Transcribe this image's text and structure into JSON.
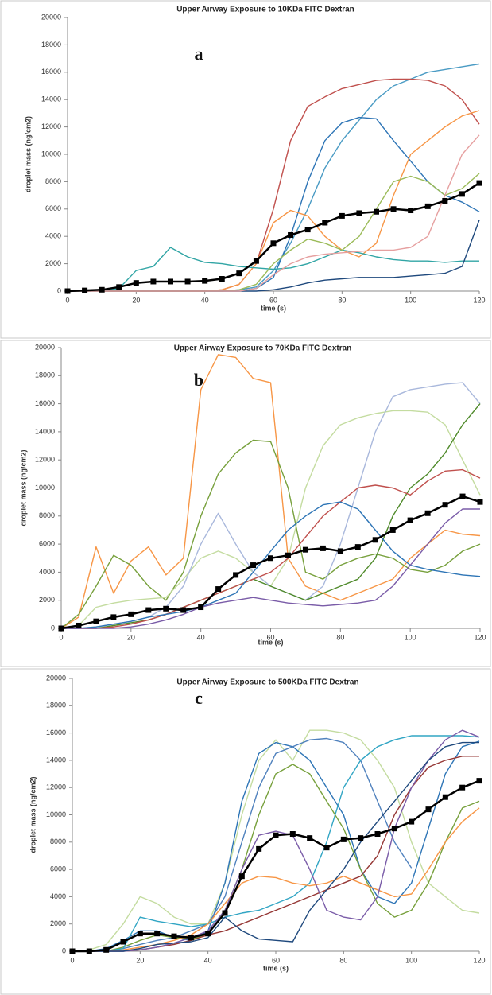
{
  "chart_data": [
    {
      "type": "line",
      "title": "Upper Airway Exposure to 10KDa FITC Dextran",
      "panel_label": "a",
      "xlabel": "time (s)",
      "ylabel": "droplet mass (ng/cm2)",
      "xlim": [
        0,
        120
      ],
      "ylim": [
        0,
        20000
      ],
      "xticks": [
        0,
        20,
        40,
        60,
        80,
        100,
        120
      ],
      "yticks": [
        0,
        2000,
        4000,
        6000,
        8000,
        10000,
        12000,
        14000,
        16000,
        18000,
        20000
      ],
      "x": [
        0,
        5,
        10,
        15,
        20,
        25,
        30,
        35,
        40,
        45,
        50,
        55,
        60,
        65,
        70,
        75,
        80,
        85,
        90,
        95,
        100,
        105,
        110,
        115,
        120
      ],
      "series": [
        {
          "color": "#4a9bc4",
          "values": [
            0,
            0,
            0,
            0,
            0,
            0,
            0,
            0,
            0,
            0,
            100,
            300,
            1500,
            3500,
            6000,
            9000,
            11000,
            12500,
            14000,
            15000,
            15500,
            16000,
            16200,
            16400,
            16600
          ]
        },
        {
          "color": "#c0504d",
          "values": [
            0,
            0,
            0,
            0,
            0,
            0,
            0,
            0,
            0,
            100,
            500,
            2000,
            6000,
            11000,
            13500,
            14200,
            14800,
            15100,
            15400,
            15500,
            15500,
            15400,
            15000,
            14000,
            12200
          ]
        },
        {
          "color": "#2e75b6",
          "values": [
            0,
            0,
            0,
            0,
            0,
            0,
            0,
            0,
            0,
            0,
            0,
            200,
            1000,
            4000,
            8000,
            11000,
            12300,
            12700,
            12600,
            11000,
            9500,
            8000,
            7000,
            6500,
            5800
          ]
        },
        {
          "color": "#f79646",
          "values": [
            0,
            0,
            0,
            0,
            0,
            0,
            0,
            0,
            0,
            100,
            500,
            2000,
            5000,
            5900,
            5500,
            4000,
            3000,
            2500,
            3500,
            7000,
            10000,
            11000,
            12000,
            12800,
            13200
          ]
        },
        {
          "color": "#31a5a5",
          "values": [
            0,
            0,
            0,
            200,
            1500,
            1800,
            3200,
            2500,
            2100,
            2000,
            1800,
            1700,
            1600,
            1700,
            2000,
            2500,
            3000,
            2800,
            2500,
            2300,
            2200,
            2200,
            2100,
            2200,
            2200
          ]
        },
        {
          "color": "#9bbb59",
          "values": [
            0,
            0,
            0,
            0,
            0,
            0,
            0,
            0,
            0,
            0,
            100,
            500,
            2000,
            3000,
            3800,
            3500,
            3000,
            4000,
            6000,
            8000,
            8400,
            8000,
            7000,
            7500,
            8600
          ]
        },
        {
          "color": "#1f497d",
          "values": [
            0,
            0,
            0,
            0,
            0,
            0,
            0,
            0,
            0,
            0,
            0,
            0,
            100,
            300,
            600,
            800,
            900,
            1000,
            1000,
            1000,
            1100,
            1200,
            1300,
            1800,
            5200
          ]
        },
        {
          "color": "#e6a0a0",
          "values": [
            0,
            0,
            0,
            0,
            0,
            0,
            0,
            0,
            0,
            0,
            0,
            200,
            1200,
            2000,
            2500,
            2700,
            2800,
            2900,
            3000,
            3000,
            3200,
            4000,
            7000,
            10000,
            11400
          ]
        },
        {
          "color": "#000000",
          "marker": "square",
          "values": [
            0,
            50,
            100,
            300,
            600,
            700,
            700,
            700,
            750,
            900,
            1300,
            2200,
            3500,
            4100,
            4500,
            5000,
            5500,
            5700,
            5800,
            6000,
            5900,
            6200,
            6600,
            7100,
            7900
          ]
        }
      ]
    },
    {
      "type": "line",
      "title": "Upper Airway  Exposure to 70KDa FITC Dextran",
      "panel_label": "b",
      "xlabel": "time (s)",
      "ylabel": "droplet mass (ng/cm2)",
      "xlim": [
        0,
        120
      ],
      "ylim": [
        0,
        20000
      ],
      "xticks": [
        0,
        20,
        40,
        60,
        80,
        100,
        120
      ],
      "yticks": [
        0,
        2000,
        4000,
        6000,
        8000,
        10000,
        12000,
        14000,
        16000,
        18000,
        20000
      ],
      "x": [
        0,
        5,
        10,
        15,
        20,
        25,
        30,
        35,
        40,
        45,
        50,
        55,
        60,
        65,
        70,
        75,
        80,
        85,
        90,
        95,
        100,
        105,
        110,
        115,
        120
      ],
      "series": [
        {
          "color": "#f79646",
          "values": [
            0,
            800,
            5800,
            2500,
            4800,
            5800,
            3800,
            5000,
            17000,
            19500,
            19300,
            17800,
            17500,
            5000,
            3000,
            2500,
            2000,
            2500,
            3000,
            3500,
            5000,
            6000,
            7000,
            6700,
            6600
          ]
        },
        {
          "color": "#77a03c",
          "values": [
            0,
            1000,
            3000,
            5200,
            4500,
            3000,
            2000,
            4000,
            8000,
            11000,
            12500,
            13400,
            13300,
            10000,
            4000,
            3500,
            4500,
            5000,
            5300,
            5000,
            4200,
            4000,
            4500,
            5500,
            6000
          ]
        },
        {
          "color": "#c4dca0",
          "values": [
            0,
            200,
            1500,
            1800,
            2000,
            2100,
            2200,
            3500,
            5000,
            5500,
            5000,
            4000,
            3000,
            5000,
            10000,
            13000,
            14500,
            15000,
            15300,
            15500,
            15500,
            15400,
            14500,
            12000,
            9500
          ]
        },
        {
          "color": "#a9b8dc",
          "values": [
            0,
            0,
            100,
            300,
            500,
            800,
            1500,
            3000,
            6000,
            8200,
            6000,
            4000,
            3000,
            2500,
            2000,
            3000,
            6000,
            10000,
            14000,
            16500,
            17000,
            17200,
            17400,
            17500,
            16000
          ]
        },
        {
          "color": "#4f8a2a",
          "values": [
            0,
            0,
            0,
            200,
            400,
            600,
            1000,
            1500,
            2000,
            2500,
            3000,
            3500,
            3000,
            2500,
            2000,
            2500,
            3000,
            3500,
            5000,
            8000,
            10000,
            11000,
            12500,
            14500,
            16000
          ]
        },
        {
          "color": "#c0504d",
          "values": [
            0,
            0,
            0,
            100,
            300,
            600,
            1000,
            1500,
            2000,
            2500,
            3000,
            3500,
            4000,
            5000,
            6500,
            8000,
            9000,
            10000,
            10200,
            10000,
            9500,
            10500,
            11200,
            11300,
            10700
          ]
        },
        {
          "color": "#2e75b6",
          "values": [
            0,
            0,
            100,
            300,
            500,
            800,
            1000,
            1200,
            1500,
            2000,
            2500,
            4000,
            5500,
            7000,
            8000,
            8800,
            9000,
            8500,
            7000,
            5500,
            4500,
            4200,
            4000,
            3800,
            3700
          ]
        },
        {
          "color": "#7a5ca8",
          "values": [
            0,
            0,
            0,
            0,
            100,
            300,
            600,
            1000,
            1500,
            1800,
            2000,
            2200,
            2000,
            1800,
            1700,
            1600,
            1700,
            1800,
            2000,
            3000,
            4500,
            6000,
            7500,
            8500,
            8500
          ]
        },
        {
          "color": "#000000",
          "marker": "square",
          "values": [
            0,
            200,
            500,
            800,
            1000,
            1300,
            1400,
            1300,
            1500,
            2800,
            3800,
            4500,
            5000,
            5200,
            5600,
            5700,
            5500,
            5800,
            6300,
            7000,
            7700,
            8200,
            8800,
            9400,
            9000
          ]
        }
      ]
    },
    {
      "type": "line",
      "title": "Upper Airway Exposure to 500KDa FITC Dextran",
      "panel_label": "c",
      "xlabel": "time (s)",
      "ylabel": "droplet mass (ng/cm2)",
      "xlim": [
        0,
        120
      ],
      "ylim": [
        0,
        20000
      ],
      "xticks": [
        0,
        20,
        40,
        60,
        80,
        100,
        120
      ],
      "yticks": [
        0,
        2000,
        4000,
        6000,
        8000,
        10000,
        12000,
        14000,
        16000,
        18000,
        20000
      ],
      "x": [
        0,
        5,
        10,
        15,
        20,
        25,
        30,
        35,
        40,
        45,
        50,
        55,
        60,
        65,
        70,
        75,
        80,
        85,
        90,
        95,
        100,
        105,
        110,
        115,
        120
      ],
      "series": [
        {
          "color": "#c4dca0",
          "values": [
            0,
            100,
            500,
            2000,
            4000,
            3500,
            2500,
            2000,
            2000,
            5000,
            10000,
            14000,
            15500,
            14000,
            16200,
            16200,
            16000,
            15500,
            14000,
            12000,
            8000,
            5000,
            4000,
            3000,
            2800
          ]
        },
        {
          "color": "#2e75b6",
          "values": [
            0,
            0,
            200,
            800,
            1500,
            1500,
            1000,
            800,
            1500,
            5000,
            11000,
            14500,
            15300,
            15000,
            14000,
            12000,
            10000,
            6000,
            4000,
            3500,
            5000,
            9000,
            13000,
            15000,
            15400
          ]
        },
        {
          "color": "#4f81bd",
          "values": [
            0,
            0,
            0,
            200,
            500,
            800,
            1000,
            1500,
            2000,
            4000,
            8000,
            12000,
            14500,
            15000,
            15500,
            15600,
            15300,
            14000,
            11000,
            8000,
            6100,
            null,
            null,
            null,
            null
          ]
        },
        {
          "color": "#77a03c",
          "values": [
            0,
            0,
            0,
            300,
            800,
            1200,
            1000,
            900,
            1200,
            3000,
            6000,
            10000,
            13000,
            13700,
            13000,
            11000,
            9000,
            6000,
            3500,
            2500,
            3000,
            5000,
            8000,
            10500,
            11000
          ]
        },
        {
          "color": "#31a5c4",
          "values": [
            0,
            0,
            0,
            200,
            2500,
            2200,
            2000,
            1800,
            2000,
            2500,
            2800,
            3000,
            3500,
            4000,
            5000,
            8000,
            12000,
            14000,
            15000,
            15500,
            15800,
            15800,
            15800,
            15800,
            15700
          ]
        },
        {
          "color": "#953735",
          "values": [
            0,
            0,
            0,
            0,
            100,
            300,
            500,
            800,
            1200,
            1500,
            2000,
            2500,
            3000,
            3500,
            4000,
            4500,
            5000,
            5500,
            7000,
            10000,
            12000,
            13500,
            14000,
            14300,
            14300
          ]
        },
        {
          "color": "#f79646",
          "values": [
            0,
            0,
            0,
            100,
            300,
            500,
            800,
            1200,
            2000,
            3500,
            5000,
            5500,
            5400,
            5000,
            4800,
            5000,
            5500,
            5000,
            4500,
            4000,
            4200,
            6000,
            8000,
            9500,
            10500
          ]
        },
        {
          "color": "#7a5ca8",
          "values": [
            0,
            0,
            0,
            0,
            100,
            300,
            600,
            1000,
            1500,
            3000,
            6000,
            8500,
            8800,
            8500,
            6000,
            3000,
            2500,
            2300,
            4000,
            9000,
            12000,
            14000,
            15500,
            16200,
            15700
          ]
        },
        {
          "color": "#1f497d",
          "values": [
            0,
            0,
            0,
            0,
            200,
            500,
            600,
            700,
            1000,
            2500,
            1500,
            900,
            800,
            700,
            3000,
            4500,
            6000,
            8000,
            9500,
            11000,
            12500,
            14000,
            15000,
            15300,
            15300
          ]
        },
        {
          "color": "#000000",
          "marker": "square",
          "values": [
            0,
            0,
            100,
            700,
            1300,
            1300,
            1100,
            1000,
            1300,
            2800,
            5500,
            7500,
            8500,
            8600,
            8300,
            7600,
            8200,
            8300,
            8600,
            9000,
            9500,
            10400,
            11300,
            12000,
            12500
          ]
        }
      ]
    }
  ]
}
